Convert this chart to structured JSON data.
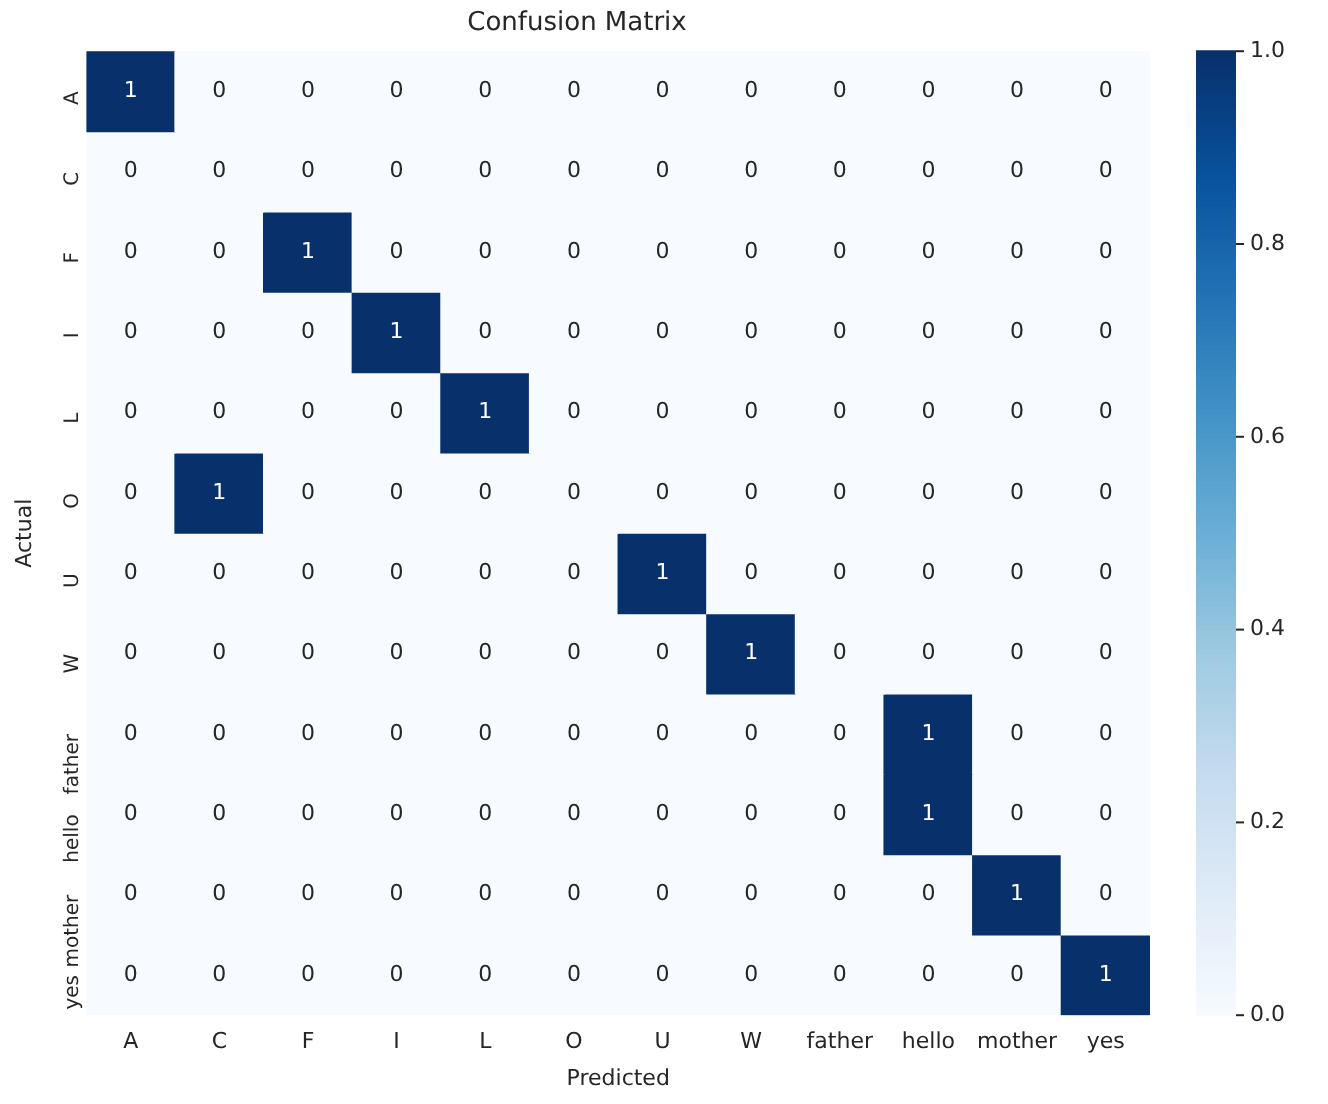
{
  "chart_data": {
    "type": "heatmap",
    "title": "Confusion Matrix",
    "xlabel": "Predicted",
    "ylabel": "Actual",
    "categories": [
      "A",
      "C",
      "F",
      "I",
      "L",
      "O",
      "U",
      "W",
      "father",
      "hello",
      "mother",
      "yes"
    ],
    "y_categories": [
      "A",
      "C",
      "F",
      "I",
      "L",
      "O",
      "U",
      "W",
      "father",
      "hello",
      "mother",
      "yes"
    ],
    "cells": [
      [
        1,
        0,
        0,
        0,
        0,
        0,
        0,
        0,
        0,
        0,
        0,
        0
      ],
      [
        0,
        0,
        0,
        0,
        0,
        0,
        0,
        0,
        0,
        0,
        0,
        0
      ],
      [
        0,
        0,
        1,
        0,
        0,
        0,
        0,
        0,
        0,
        0,
        0,
        0
      ],
      [
        0,
        0,
        0,
        1,
        0,
        0,
        0,
        0,
        0,
        0,
        0,
        0
      ],
      [
        0,
        0,
        0,
        0,
        1,
        0,
        0,
        0,
        0,
        0,
        0,
        0
      ],
      [
        0,
        1,
        0,
        0,
        0,
        0,
        0,
        0,
        0,
        0,
        0,
        0
      ],
      [
        0,
        0,
        0,
        0,
        0,
        0,
        1,
        0,
        0,
        0,
        0,
        0
      ],
      [
        0,
        0,
        0,
        0,
        0,
        0,
        0,
        1,
        0,
        0,
        0,
        0
      ],
      [
        0,
        0,
        0,
        0,
        0,
        0,
        0,
        0,
        0,
        1,
        0,
        0
      ],
      [
        0,
        0,
        0,
        0,
        0,
        0,
        0,
        0,
        0,
        1,
        0,
        0
      ],
      [
        0,
        0,
        0,
        0,
        0,
        0,
        0,
        0,
        0,
        0,
        1,
        0
      ],
      [
        0,
        0,
        0,
        0,
        0,
        0,
        0,
        0,
        0,
        0,
        0,
        1
      ]
    ],
    "clim": [
      0,
      1
    ],
    "cticks": [
      {
        "value": 0,
        "label": "0.0"
      },
      0.2,
      0.4,
      0.6,
      0.8,
      {
        "value": 1,
        "label": "1.0"
      }
    ],
    "data_labels": true,
    "grid": false,
    "legend": false
  }
}
